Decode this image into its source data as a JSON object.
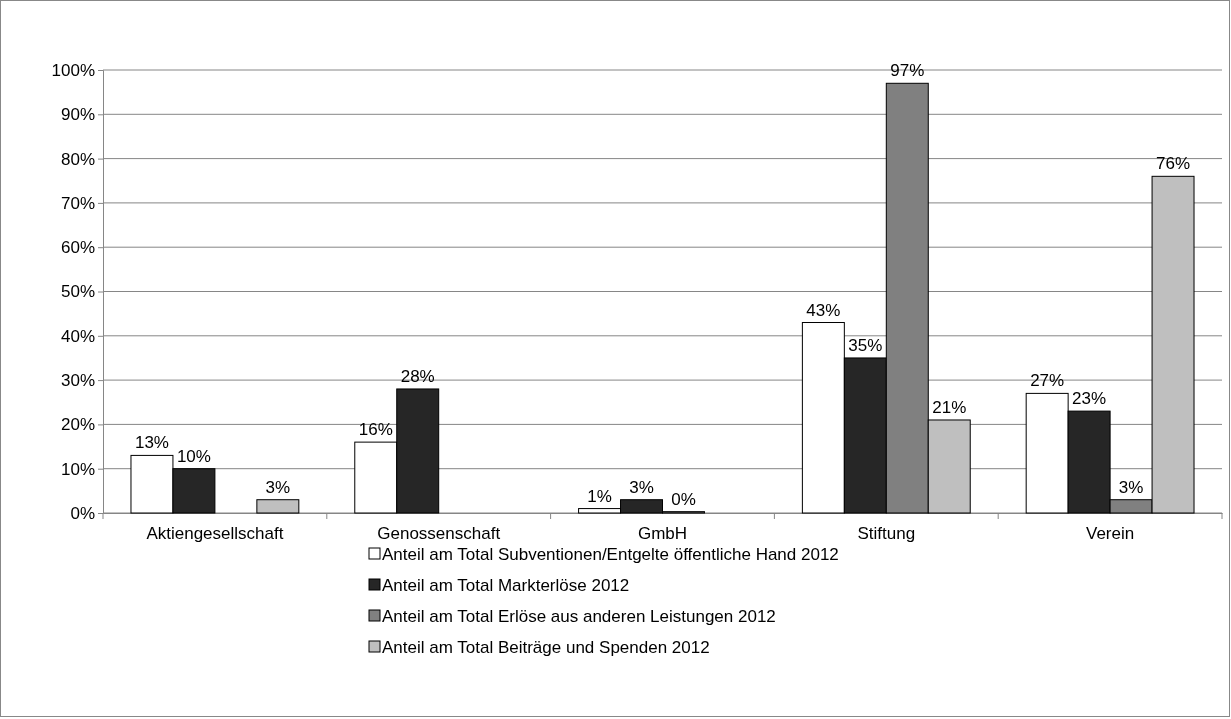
{
  "chart_data": {
    "type": "bar",
    "categories": [
      "Aktiengesellschaft",
      "Genossenschaft",
      "GmbH",
      "Stiftung",
      "Verein"
    ],
    "series": [
      {
        "name": "Anteil am Total Subventionen/Entgelte öffentliche Hand 2012",
        "color": "#ffffff",
        "values": [
          13,
          16,
          1,
          43,
          27
        ],
        "value_labels": [
          "13%",
          "16%",
          "1%",
          "43%",
          "27%"
        ]
      },
      {
        "name": "Anteil am Total Markterlöse 2012",
        "color": "#262626",
        "values": [
          10,
          28,
          3,
          35,
          23
        ],
        "value_labels": [
          "10%",
          "28%",
          "3%",
          "35%",
          "23%"
        ]
      },
      {
        "name": "Anteil am Total Erlöse aus anderen Leistungen 2012",
        "color": "#808080",
        "values": [
          null,
          null,
          0.3,
          97,
          3
        ],
        "value_labels": [
          null,
          null,
          "0%",
          "97%",
          "3%"
        ]
      },
      {
        "name": "Anteil am Total Beiträge und Spenden 2012",
        "color": "#bfbfbf",
        "values": [
          3,
          null,
          null,
          21,
          76
        ],
        "value_labels": [
          "3%",
          null,
          null,
          "21%",
          "76%"
        ]
      }
    ],
    "ylim": [
      0,
      100
    ],
    "yticks": [
      {
        "value": 0,
        "label": "0%"
      },
      {
        "value": 10,
        "label": "10%"
      },
      {
        "value": 20,
        "label": "20%"
      },
      {
        "value": 30,
        "label": "30%"
      },
      {
        "value": 40,
        "label": "40%"
      },
      {
        "value": 50,
        "label": "50%"
      },
      {
        "value": 60,
        "label": "60%"
      },
      {
        "value": 70,
        "label": "70%"
      },
      {
        "value": 80,
        "label": "80%"
      },
      {
        "value": 90,
        "label": "90%"
      },
      {
        "value": 100,
        "label": "100%"
      }
    ],
    "grid": "y",
    "legend": "bottom"
  }
}
